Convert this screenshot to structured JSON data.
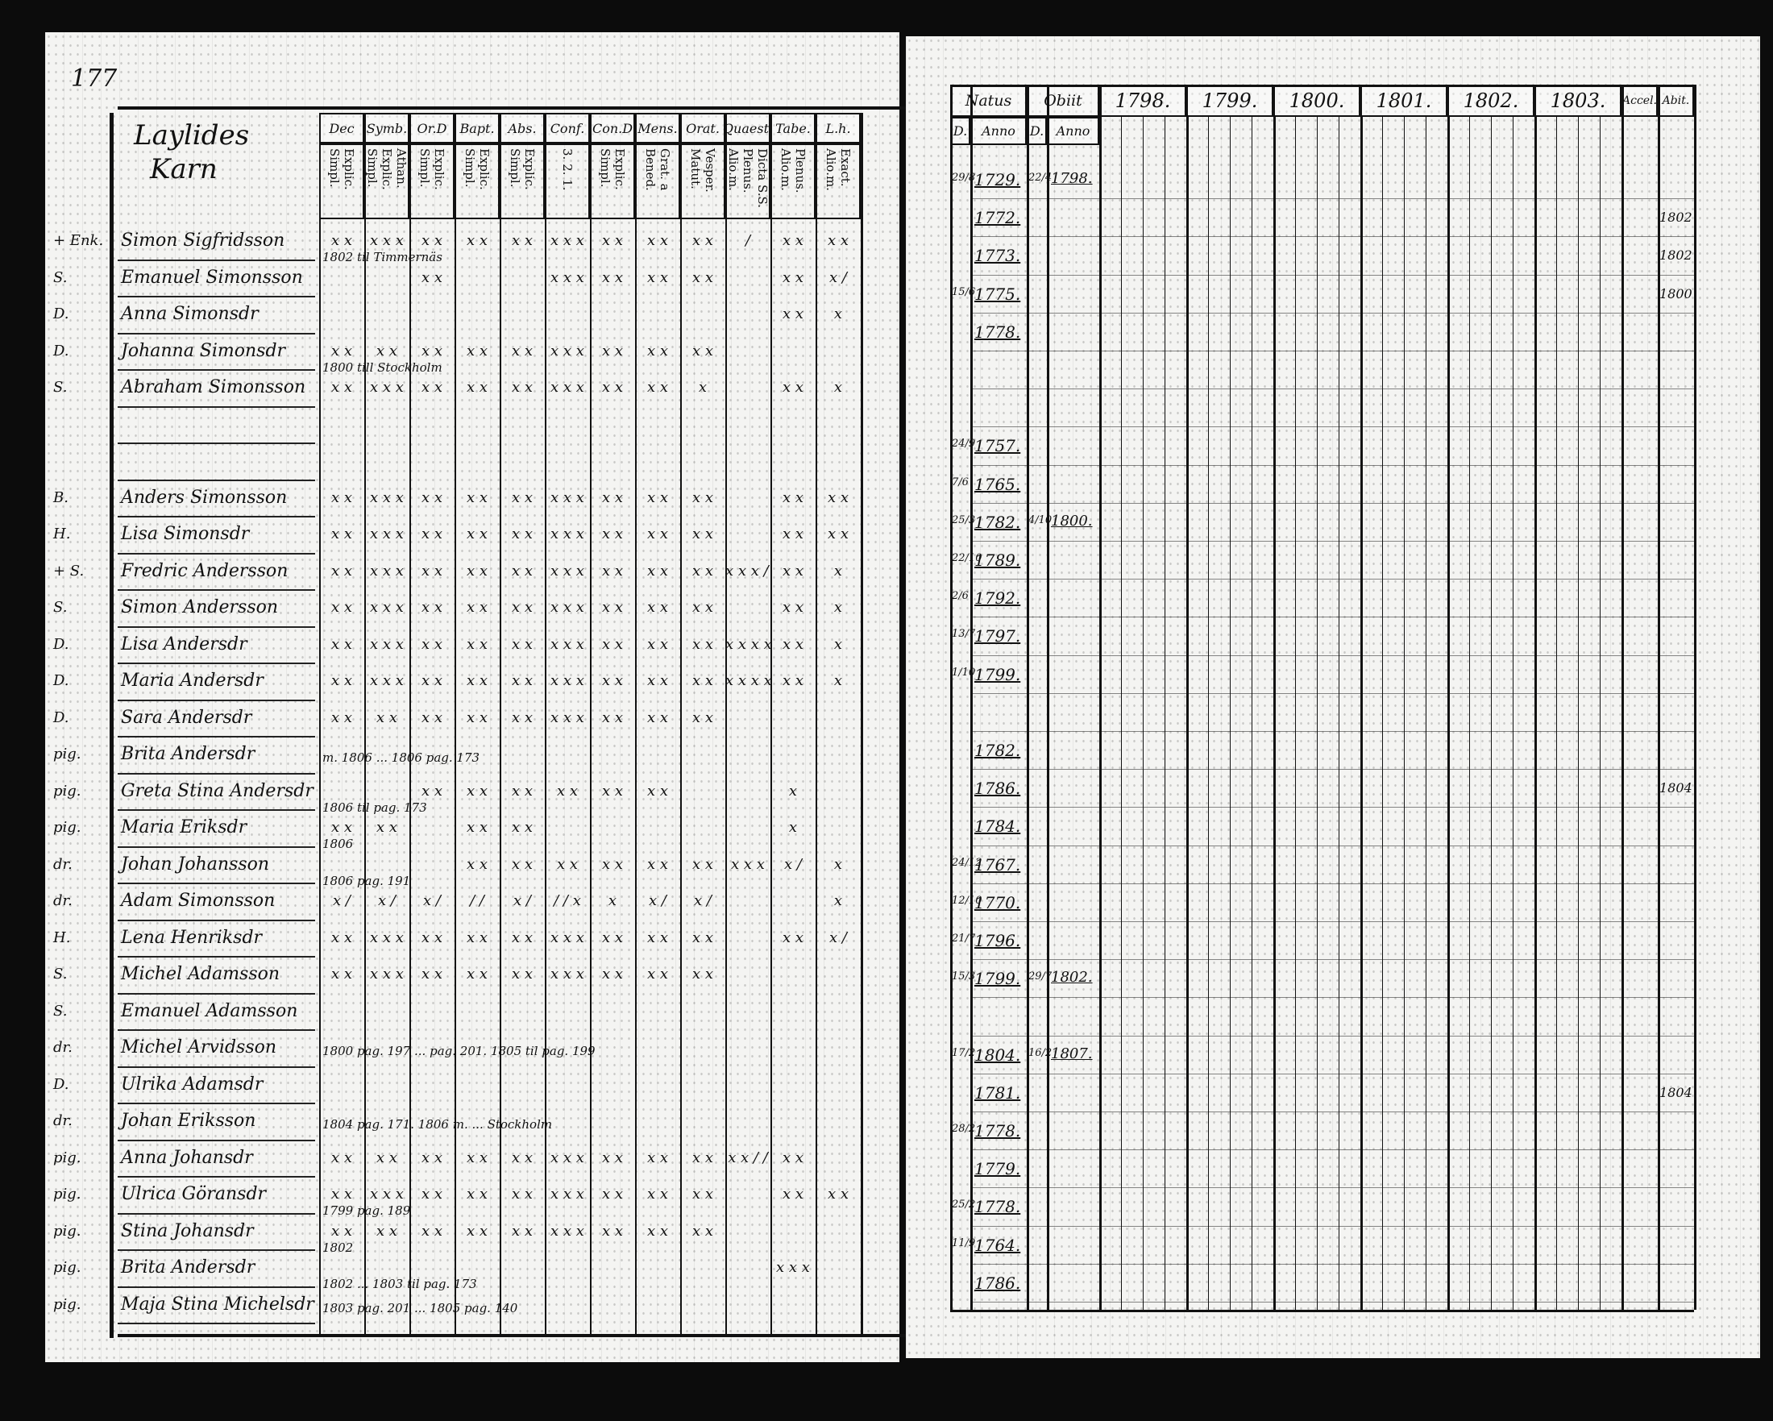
{
  "left_page": {
    "page_number": "177",
    "title_line1": "Laylides",
    "title_line2": "Karn",
    "column_groups": [
      {
        "label": "Dec",
        "sub": "Explic. Simpl."
      },
      {
        "label": "Symb.",
        "sub": "Athan. Explic. Simpl."
      },
      {
        "label": "Or.D",
        "sub": "Explic. Simpl."
      },
      {
        "label": "Bapt.",
        "sub": "Explic. Simpl."
      },
      {
        "label": "Abs.",
        "sub": "Explic. Simpl."
      },
      {
        "label": "Conf.",
        "sub": "3. 2. 1."
      },
      {
        "label": "Con.D",
        "sub": "Explic. Simpl."
      },
      {
        "label": "Mens.",
        "sub": "Grat. a Bened."
      },
      {
        "label": "Orat.",
        "sub": "Vesper. Matut."
      },
      {
        "label": "Quaest.",
        "sub": "Dicta S.S. Plenus. Alio.m."
      },
      {
        "label": "Tabe.",
        "sub": "Plenus. Alio.m."
      },
      {
        "label": "L.h.",
        "sub": "Exact. Alio.m."
      }
    ],
    "rows": [
      {
        "prefix": "+ Enk.",
        "name": "Simon Sigfridsson",
        "marks": [
          "x x",
          "x x x",
          "x x",
          "x x",
          "x x",
          "x x x",
          "x x",
          "x x",
          "x x",
          "/",
          "x x",
          "x x"
        ],
        "note": "1802 til Timmernäs"
      },
      {
        "prefix": "S.",
        "name": "Emanuel Simonsson",
        "marks": [
          "",
          "",
          "x x",
          "",
          "",
          "x x x",
          "x x",
          "x x",
          "x x",
          "",
          "x x",
          "x /"
        ],
        "note": ""
      },
      {
        "prefix": "D.",
        "name": "Anna Simonsdr",
        "marks": [
          "",
          "",
          "",
          "",
          "",
          "",
          "",
          "",
          "",
          "",
          "x x",
          "x"
        ],
        "note": ""
      },
      {
        "prefix": "D.",
        "name": "Johanna Simonsdr",
        "marks": [
          "x x",
          "x x",
          "x x",
          "x x",
          "x x",
          "x x x",
          "x x",
          "x x",
          "x x",
          "",
          "",
          ""
        ],
        "note": "1800 till Stockholm"
      },
      {
        "prefix": "S.",
        "name": "Abraham Simonsson",
        "marks": [
          "x x",
          "x x x",
          "x x",
          "x x",
          "x x",
          "x x x",
          "x x",
          "x x",
          "x",
          "",
          "x x",
          "x"
        ],
        "note": ""
      },
      {
        "prefix": "",
        "name": "",
        "marks": [],
        "note": ""
      },
      {
        "prefix": "",
        "name": "",
        "marks": [],
        "note": ""
      },
      {
        "prefix": "B.",
        "name": "Anders Simonsson",
        "marks": [
          "x x",
          "x x x",
          "x x",
          "x x",
          "x x",
          "x x x",
          "x x",
          "x x",
          "x x",
          "",
          "x x",
          "x x"
        ],
        "note": ""
      },
      {
        "prefix": "H.",
        "name": "Lisa Simonsdr",
        "marks": [
          "x x",
          "x x x",
          "x x",
          "x x",
          "x x",
          "x x x",
          "x x",
          "x x",
          "x x",
          "",
          "x x",
          "x x"
        ],
        "note": ""
      },
      {
        "prefix": "+ S.",
        "name": "Fredric Andersson",
        "marks": [
          "x x",
          "x x x",
          "x x",
          "x x",
          "x x",
          "x x x",
          "x x",
          "x x",
          "x x",
          "x x x / / /",
          "x x",
          "x"
        ],
        "note": ""
      },
      {
        "prefix": "S.",
        "name": "Simon Andersson",
        "marks": [
          "x x",
          "x x x",
          "x x",
          "x x",
          "x x",
          "x x x",
          "x x",
          "x x",
          "x x",
          "",
          "x x",
          "x"
        ],
        "note": ""
      },
      {
        "prefix": "D.",
        "name": "Lisa Andersdr",
        "marks": [
          "x x",
          "x x x",
          "x x",
          "x x",
          "x x",
          "x x x",
          "x x",
          "x x",
          "x x",
          "x x x x x",
          "x x",
          "x"
        ],
        "note": ""
      },
      {
        "prefix": "D.",
        "name": "Maria Andersdr",
        "marks": [
          "x x",
          "x x x",
          "x x",
          "x x",
          "x x",
          "x x x",
          "x x",
          "x x",
          "x x",
          "x x x x x",
          "x x",
          "x"
        ],
        "note": ""
      },
      {
        "prefix": "D.",
        "name": "Sara Andersdr",
        "marks": [
          "x x",
          "x x",
          "x x",
          "x x",
          "x x",
          "x x x",
          "x x",
          "x x",
          "x x",
          "",
          "",
          ""
        ],
        "note": ""
      },
      {
        "prefix": "pig.",
        "name": "Brita Andersdr",
        "marks": [],
        "note": "m. 1806 ... 1806 pag. 173"
      },
      {
        "prefix": "pig.",
        "name": "Greta Stina Andersdr",
        "marks": [
          "",
          "",
          "x x",
          "x x",
          "x x",
          "x x",
          "x x",
          "x x",
          "",
          "",
          "x",
          ""
        ],
        "note": "1806 til pag. 173"
      },
      {
        "prefix": "pig.",
        "name": "Maria Eriksdr",
        "marks": [
          "x x",
          "x x",
          "",
          "x x",
          "x x",
          "",
          "",
          "",
          "",
          "",
          "x",
          ""
        ],
        "note": "1806"
      },
      {
        "prefix": "dr.",
        "name": "Johan Johansson",
        "marks": [
          "",
          "",
          "",
          "x x",
          "x x",
          "x x",
          "x x",
          "x x",
          "x x",
          "x x x",
          "x /",
          "x"
        ],
        "note": "1806 pag. 191"
      },
      {
        "prefix": "dr.",
        "name": "Adam Simonsson",
        "marks": [
          "x /",
          "x /",
          "x /",
          "/ /",
          "x /",
          "/ / x",
          "x",
          "x /",
          "x /",
          "",
          "",
          "x"
        ],
        "note": ""
      },
      {
        "prefix": "H.",
        "name": "Lena Henriksdr",
        "marks": [
          "x x",
          "x x x",
          "x x",
          "x x",
          "x x",
          "x x x",
          "x x",
          "x x",
          "x x",
          "",
          "x x",
          "x /"
        ],
        "note": ""
      },
      {
        "prefix": "S.",
        "name": "Michel Adamsson",
        "marks": [
          "x x",
          "x x x",
          "x x",
          "x x",
          "x x",
          "x x x",
          "x x",
          "x x",
          "x x",
          "",
          "",
          ""
        ],
        "note": ""
      },
      {
        "prefix": "S.",
        "name": "Emanuel Adamsson",
        "marks": [],
        "note": ""
      },
      {
        "prefix": "dr.",
        "name": "Michel Arvidsson",
        "marks": [],
        "note": "1800 pag. 197 ... pag. 201. 1805 til pag. 199"
      },
      {
        "prefix": "D.",
        "name": "Ulrika Adamsdr",
        "marks": [],
        "note": ""
      },
      {
        "prefix": "dr.",
        "name": "Johan Eriksson",
        "marks": [],
        "note": "1804 pag. 171. 1806 m. ... Stockholm"
      },
      {
        "prefix": "pig.",
        "name": "Anna Johansdr",
        "marks": [
          "x x",
          "x x",
          "x x",
          "x x",
          "x x",
          "x x x",
          "x x",
          "x x",
          "x x",
          "x x / /",
          "x x",
          ""
        ],
        "note": ""
      },
      {
        "prefix": "pig.",
        "name": "Ulrica Göransdr",
        "marks": [
          "x x",
          "x x x",
          "x x",
          "x x",
          "x x",
          "x x x",
          "x x",
          "x x",
          "x x",
          "",
          "x x",
          "x x"
        ],
        "note": "1799 pag. 189"
      },
      {
        "prefix": "pig.",
        "name": "Stina Johansdr",
        "marks": [
          "x x",
          "x x",
          "x x",
          "x x",
          "x x",
          "x x x",
          "x x",
          "x x",
          "x x",
          "",
          "",
          ""
        ],
        "note": "1802"
      },
      {
        "prefix": "pig.",
        "name": "Brita Andersdr",
        "marks": [
          "",
          "",
          "",
          "",
          "",
          "",
          "",
          "",
          "",
          "",
          "x x x",
          ""
        ],
        "note": "1802 ... 1803 til pag. 173"
      },
      {
        "prefix": "pig.",
        "name": "Maja Stina Michelsdr",
        "marks": [],
        "note": "1803 pag. 201 ... 1805 pag. 140"
      }
    ]
  },
  "right_page": {
    "headers": {
      "natus": "Natus",
      "obiit": "Obiit",
      "d": "D.",
      "anno": "Anno",
      "accel": "Accel.",
      "abit": "Abit."
    },
    "years": [
      "1798.",
      "1799.",
      "1800.",
      "1801.",
      "1802.",
      "1803."
    ],
    "rows": [
      {
        "natus_d": "29/8",
        "natus": "1729.",
        "obiit_d": "22/4",
        "obiit": "1798.",
        "abit": ""
      },
      {
        "natus_d": "",
        "natus": "1772.",
        "obiit_d": "",
        "obiit": "",
        "abit": "1802"
      },
      {
        "natus_d": "",
        "natus": "1773.",
        "obiit_d": "",
        "obiit": "",
        "abit": "1802"
      },
      {
        "natus_d": "15/6",
        "natus": "1775.",
        "obiit_d": "",
        "obiit": "",
        "abit": "1800"
      },
      {
        "natus_d": "",
        "natus": "1778.",
        "obiit_d": "",
        "obiit": "",
        "abit": ""
      },
      {
        "natus_d": "",
        "natus": "",
        "obiit_d": "",
        "obiit": "",
        "abit": ""
      },
      {
        "natus_d": "",
        "natus": "",
        "obiit_d": "",
        "obiit": "",
        "abit": ""
      },
      {
        "natus_d": "24/9",
        "natus": "1757.",
        "obiit_d": "",
        "obiit": "",
        "abit": ""
      },
      {
        "natus_d": "7/6",
        "natus": "1765.",
        "obiit_d": "",
        "obiit": "",
        "abit": ""
      },
      {
        "natus_d": "25/3",
        "natus": "1782.",
        "obiit_d": "4/10",
        "obiit": "1800.",
        "abit": ""
      },
      {
        "natus_d": "22/10",
        "natus": "1789.",
        "obiit_d": "",
        "obiit": "",
        "abit": ""
      },
      {
        "natus_d": "2/6",
        "natus": "1792.",
        "obiit_d": "",
        "obiit": "",
        "abit": ""
      },
      {
        "natus_d": "13/7",
        "natus": "1797.",
        "obiit_d": "",
        "obiit": "",
        "abit": ""
      },
      {
        "natus_d": "1/10",
        "natus": "1799.",
        "obiit_d": "",
        "obiit": "",
        "abit": ""
      },
      {
        "natus_d": "",
        "natus": "",
        "obiit_d": "",
        "obiit": "",
        "abit": ""
      },
      {
        "natus_d": "",
        "natus": "1782.",
        "obiit_d": "",
        "obiit": "",
        "abit": ""
      },
      {
        "natus_d": "",
        "natus": "1786.",
        "obiit_d": "",
        "obiit": "",
        "abit": "1804"
      },
      {
        "natus_d": "",
        "natus": "1784.",
        "obiit_d": "",
        "obiit": "",
        "abit": ""
      },
      {
        "natus_d": "24/12",
        "natus": "1767.",
        "obiit_d": "",
        "obiit": "",
        "abit": ""
      },
      {
        "natus_d": "12/10",
        "natus": "1770.",
        "obiit_d": "",
        "obiit": "",
        "abit": ""
      },
      {
        "natus_d": "21/7",
        "natus": "1796.",
        "obiit_d": "",
        "obiit": "",
        "abit": ""
      },
      {
        "natus_d": "15/3",
        "natus": "1799.",
        "obiit_d": "29/7",
        "obiit": "1802.",
        "abit": ""
      },
      {
        "natus_d": "",
        "natus": "",
        "obiit_d": "",
        "obiit": "",
        "abit": ""
      },
      {
        "natus_d": "17/2",
        "natus": "1804.",
        "obiit_d": "16/2",
        "obiit": "1807.",
        "abit": ""
      },
      {
        "natus_d": "",
        "natus": "1781.",
        "obiit_d": "",
        "obiit": "",
        "abit": "1804"
      },
      {
        "natus_d": "28/2",
        "natus": "1778.",
        "obiit_d": "",
        "obiit": "",
        "abit": ""
      },
      {
        "natus_d": "",
        "natus": "1779.",
        "obiit_d": "",
        "obiit": "",
        "abit": ""
      },
      {
        "natus_d": "25/2",
        "natus": "1778.",
        "obiit_d": "",
        "obiit": "",
        "abit": ""
      },
      {
        "natus_d": "11/9",
        "natus": "1764.",
        "obiit_d": "",
        "obiit": "",
        "abit": ""
      },
      {
        "natus_d": "",
        "natus": "1786.",
        "obiit_d": "",
        "obiit": "",
        "abit": ""
      }
    ]
  }
}
